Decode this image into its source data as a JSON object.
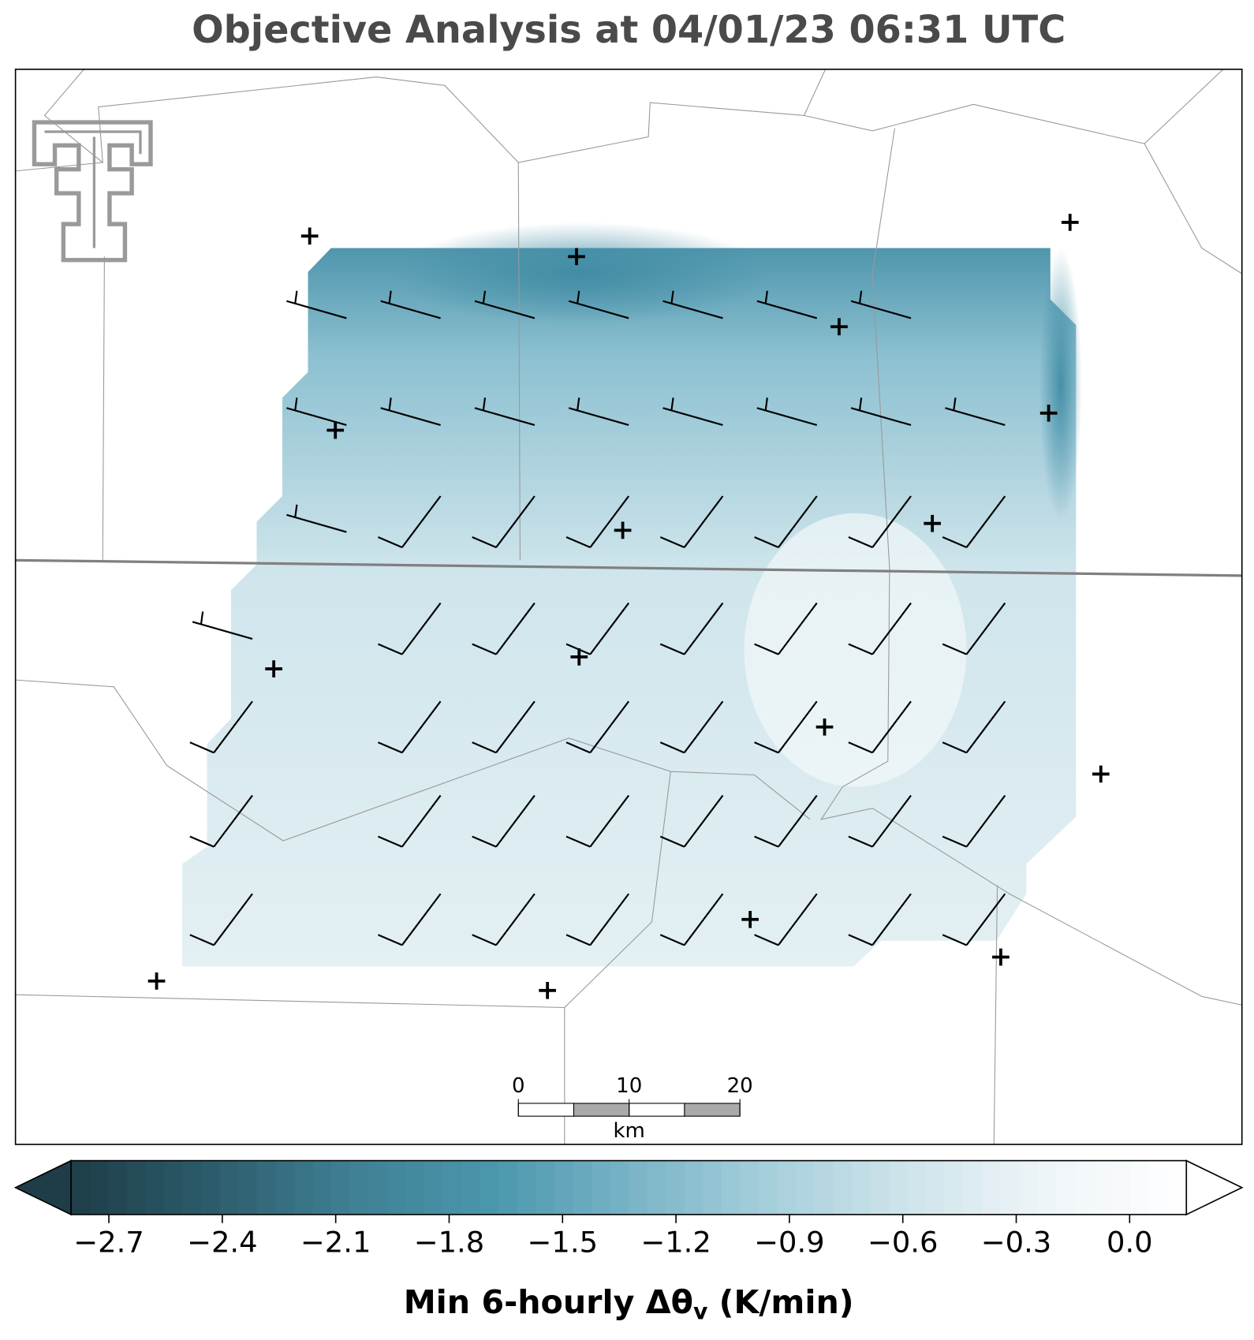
{
  "title": "Objective Analysis at 04/01/23 06:31 UTC",
  "scale_bar": {
    "xlim": [
      0,
      20
    ],
    "xticks": [
      0,
      10,
      20
    ],
    "unit": "km"
  },
  "colorbar": {
    "xlim": [
      -2.8,
      0.15
    ],
    "xticks": [
      {
        "value": -2.7,
        "label": "−2.7"
      },
      {
        "value": -2.4,
        "label": "−2.4"
      },
      {
        "value": -2.1,
        "label": "−2.1"
      },
      {
        "value": -1.8,
        "label": "−1.8"
      },
      {
        "value": -1.5,
        "label": "−1.5"
      },
      {
        "value": -1.2,
        "label": "−1.2"
      },
      {
        "value": -0.9,
        "label": "−0.9"
      },
      {
        "value": -0.6,
        "label": "−0.6"
      },
      {
        "value": -0.3,
        "label": "−0.3"
      },
      {
        "value": 0.0,
        "label": "0.0"
      }
    ],
    "colors": [
      "#1e3d48",
      "#2c5c6c",
      "#3f7f93",
      "#4a96ad",
      "#78b3c6",
      "#a6cfdc",
      "#cfe4eb",
      "#eef5f8",
      "#ffffff"
    ],
    "label": {
      "text": "Min 6-hourly Δθ",
      "subscript": "v",
      "suffix": " (K/min)"
    }
  }
}
